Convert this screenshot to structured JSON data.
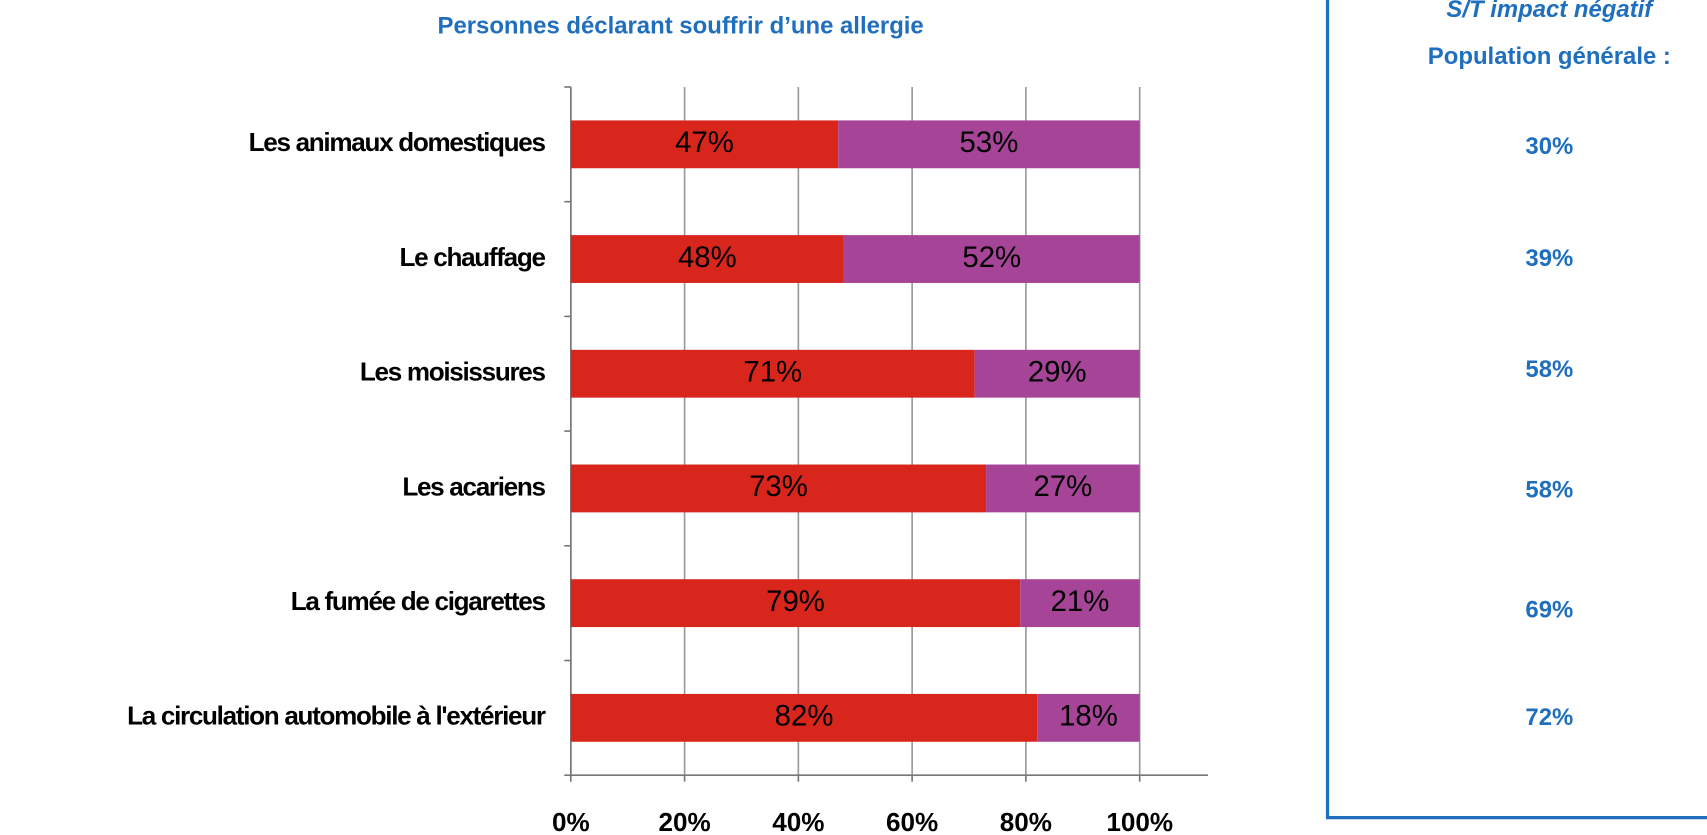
{
  "chart_data": {
    "type": "stacked-bar-horizontal",
    "title": "Personnes déclarant souffrir d’une allergie",
    "categories": [
      "Les animaux domestiques",
      "Le chauffage",
      "Les moisissures",
      "Les acariens",
      "La fumée de cigarettes",
      "La circulation automobile à l'extérieur"
    ],
    "series": [
      {
        "color": "#d9261c",
        "values": [
          47,
          48,
          71,
          73,
          79,
          82
        ],
        "value_labels": [
          "47%",
          "48%",
          "71%",
          "73%",
          "79%",
          "82%"
        ]
      },
      {
        "color": "#a64497",
        "values": [
          53,
          52,
          29,
          27,
          21,
          18
        ],
        "value_labels": [
          "53%",
          "52%",
          "29%",
          "27%",
          "21%",
          "18%"
        ]
      }
    ],
    "xlim": [
      0,
      112
    ],
    "xticks": [
      {
        "value": 0,
        "label": "0%"
      },
      {
        "value": 20,
        "label": "20%"
      },
      {
        "value": 40,
        "label": "40%"
      },
      {
        "value": 60,
        "label": "60%"
      },
      {
        "value": 80,
        "label": "80%"
      },
      {
        "value": 100,
        "label": "100%"
      }
    ],
    "grid": true
  },
  "side_panel": {
    "title": "S/T impact négatif",
    "subtitle": "Population générale :",
    "values": [
      "30%",
      "39%",
      "58%",
      "58%",
      "69%",
      "72%"
    ]
  }
}
